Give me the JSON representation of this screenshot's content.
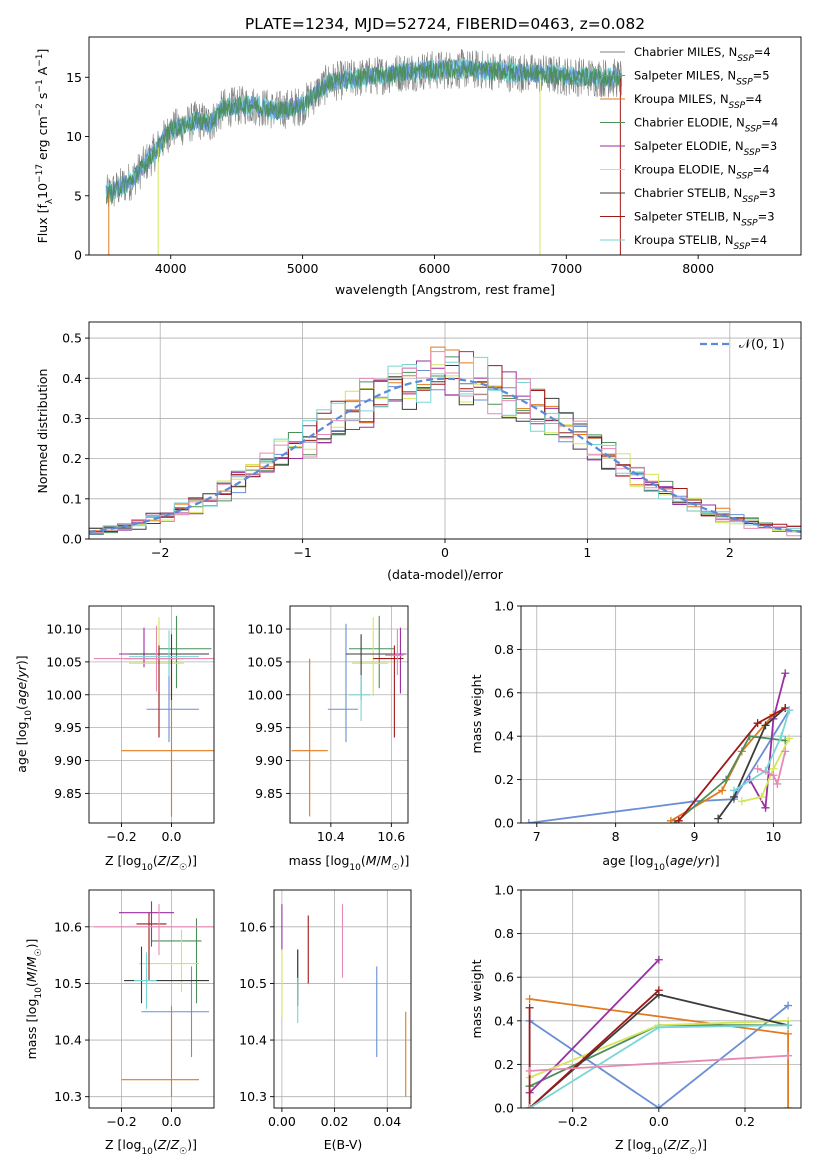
{
  "title": "PLATE=1234, MJD=52724, FIBERID=0463, z=0.082",
  "colors": {
    "Chabrier MILES": "#808080",
    "Salpeter MILES": "#6a8fd6",
    "Kroupa MILES": "#e07b1f",
    "Chabrier ELODIE": "#4d8f5a",
    "Salpeter ELODIE": "#9a2fa3",
    "Kroupa ELODIE": "#d4e65a",
    "Chabrier STELIB": "#3c3c3c",
    "Salpeter STELIB": "#a01818",
    "Kroupa STELIB": "#78d6d6",
    "extra": "#e68ab4"
  },
  "chart_data": [
    {
      "type": "line",
      "name": "spectrum",
      "xlabel": "wavelength [Angstrom, rest frame]",
      "ylabel": "Flux [f_λ 10^-17 erg cm^-2 s^-1 A^-1]",
      "xlim": [
        3380,
        8780
      ],
      "ylim": [
        0,
        18.4
      ],
      "xticks": [
        4000,
        5000,
        6000,
        7000,
        8000
      ],
      "yticks": [
        0,
        5,
        10,
        15
      ],
      "grid": false,
      "legend_position": "right",
      "legend": [
        {
          "label": "Chabrier MILES, N",
          "sub": "SSP",
          "suffix": "=4"
        },
        {
          "label": "Salpeter MILES, N",
          "sub": "SSP",
          "suffix": "=5"
        },
        {
          "label": "Kroupa MILES, N",
          "sub": "SSP",
          "suffix": "=4"
        },
        {
          "label": "Chabrier ELODIE, N",
          "sub": "SSP",
          "suffix": "=4"
        },
        {
          "label": "Salpeter ELODIE, N",
          "sub": "SSP",
          "suffix": "=3"
        },
        {
          "label": "Kroupa ELODIE, N",
          "sub": "SSP",
          "suffix": "=4"
        },
        {
          "label": "Chabrier STELIB, N",
          "sub": "SSP",
          "suffix": "=3"
        },
        {
          "label": "Salpeter STELIB, N",
          "sub": "SSP",
          "suffix": "=3"
        },
        {
          "label": "Kroupa STELIB, N",
          "sub": "SSP",
          "suffix": "=4"
        }
      ],
      "continuum": {
        "x": [
          3500,
          3600,
          3700,
          3800,
          3900,
          4000,
          4100,
          4200,
          4300,
          4400,
          4600,
          4800,
          5000,
          5200,
          5400,
          5600,
          5800,
          6000,
          6200,
          6400,
          6600,
          6800,
          7000,
          7200,
          7420
        ],
        "y": [
          5.0,
          5.6,
          6.3,
          7.6,
          9.0,
          10.6,
          10.9,
          11.4,
          11.1,
          12.4,
          12.7,
          12.2,
          12.6,
          14.6,
          14.9,
          15.2,
          15.5,
          15.6,
          15.7,
          15.6,
          15.4,
          15.3,
          15.1,
          15.0,
          14.9
        ]
      },
      "drops": [
        {
          "x": 3530,
          "series": "Kroupa MILES"
        },
        {
          "x": 3905,
          "series": "Kroupa ELODIE"
        },
        {
          "x": 6800,
          "series": "Kroupa ELODIE"
        },
        {
          "x": 7410,
          "series": "Salpeter STELIB"
        }
      ]
    },
    {
      "type": "bar",
      "name": "residual histogram",
      "xlabel": "(data-model)/error",
      "ylabel": "Normed distribution",
      "xlim": [
        -2.5,
        2.5
      ],
      "ylim": [
        0,
        0.54
      ],
      "xticks": [
        -2,
        -1,
        0,
        1,
        2
      ],
      "yticks": [
        0.0,
        0.1,
        0.2,
        0.3,
        0.4,
        0.5
      ],
      "grid": true,
      "legend": [
        {
          "label": "𝒩(0, 1)",
          "style": "dashed",
          "color": "#5b8ad8"
        }
      ],
      "legend_position": "top-right",
      "bin_width": 0.1,
      "bin_start": -2.5,
      "base_curve": "standard normal density"
    },
    {
      "type": "scatter",
      "name": "age vs Z",
      "xlabel": "Z [log10(Z/Z☉)]",
      "ylabel": "age  [log10(age/yr)]",
      "xlim": [
        -0.33,
        0.17
      ],
      "ylim": [
        9.805,
        10.135
      ],
      "xticks": [
        -0.2,
        0.0
      ],
      "yticks": [
        9.85,
        9.9,
        9.95,
        10.0,
        10.05,
        10.1
      ],
      "grid": true,
      "points": [
        {
          "series": "Salpeter MILES",
          "x": -0.01,
          "xerr": [
            0.09,
            0.12
          ],
          "y": 9.978,
          "yerr": [
            0.05,
            0.08
          ]
        },
        {
          "series": "Kroupa MILES",
          "x": 0.0,
          "xerr": [
            0.2,
            0.23
          ],
          "y": 9.915,
          "yerr": [
            0.1,
            0.14
          ]
        },
        {
          "series": "Chabrier ELODIE",
          "x": 0.02,
          "xerr": [
            0.07,
            0.14
          ],
          "y": 10.07,
          "yerr": [
            0.06,
            0.05
          ]
        },
        {
          "series": "Salpeter ELODIE",
          "x": -0.11,
          "xerr": [
            0.1,
            0.13
          ],
          "y": 10.062,
          "yerr": [
            0.02,
            0.04
          ]
        },
        {
          "series": "Kroupa ELODIE",
          "x": -0.05,
          "xerr": [
            0.12,
            0.1
          ],
          "y": 10.048,
          "yerr": [
            0.05,
            0.07
          ]
        },
        {
          "series": "Chabrier STELIB",
          "x": 0.0,
          "xerr": [
            0.17,
            0.15
          ],
          "y": 10.062,
          "yerr": [
            0.07,
            0.03
          ]
        },
        {
          "series": "Salpeter STELIB",
          "x": -0.05,
          "xerr": [
            0.14,
            0.1
          ],
          "y": 10.055,
          "yerr": [
            0.12,
            0.02
          ]
        },
        {
          "series": "Kroupa STELIB",
          "x": -0.01,
          "xerr": [
            0.16,
            0.12
          ],
          "y": 10.058,
          "yerr": [
            0.03,
            0.04
          ]
        },
        {
          "series": "extra",
          "x": -0.06,
          "xerr": [
            0.25,
            0.24
          ],
          "y": 10.055,
          "yerr": [
            0.05,
            0.05
          ]
        }
      ]
    },
    {
      "type": "scatter",
      "name": "age vs mass",
      "xlabel": "mass [log10(M/M☉)]",
      "ylabel": "",
      "xlim": [
        10.265,
        10.655
      ],
      "ylim": [
        9.805,
        10.135
      ],
      "xticks": [
        10.4,
        10.6
      ],
      "yticks": [
        9.85,
        9.9,
        9.95,
        10.0,
        10.05,
        10.1
      ],
      "grid": true,
      "points": [
        {
          "series": "Salpeter MILES",
          "x": 10.45,
          "xerr": [
            0.06,
            0.04
          ],
          "y": 9.978,
          "yerr": [
            0.05,
            0.13
          ]
        },
        {
          "series": "Kroupa MILES",
          "x": 10.33,
          "xerr": [
            0.06,
            0.06
          ],
          "y": 9.915,
          "yerr": [
            0.1,
            0.14
          ]
        },
        {
          "series": "Chabrier ELODIE",
          "x": 10.56,
          "xerr": [
            0.1,
            0.05
          ],
          "y": 10.07,
          "yerr": [
            0.06,
            0.05
          ]
        },
        {
          "series": "Salpeter ELODIE",
          "x": 10.63,
          "xerr": [
            0.07,
            0.02
          ],
          "y": 10.062,
          "yerr": [
            0.06,
            0.04
          ]
        },
        {
          "series": "Kroupa ELODIE",
          "x": 10.54,
          "xerr": [
            0.07,
            0.05
          ],
          "y": 10.048,
          "yerr": [
            0.05,
            0.07
          ]
        },
        {
          "series": "Chabrier STELIB",
          "x": 10.5,
          "xerr": [
            0.05,
            0.1
          ],
          "y": 10.062,
          "yerr": [
            0.07,
            0.03
          ]
        },
        {
          "series": "Salpeter STELIB",
          "x": 10.61,
          "xerr": [
            0.07,
            0.03
          ],
          "y": 10.055,
          "yerr": [
            0.12,
            0.02
          ]
        },
        {
          "series": "Kroupa STELIB",
          "x": 10.5,
          "xerr": [
            0.04,
            0.03
          ],
          "y": 10.0,
          "yerr": [
            0.04,
            0.03
          ]
        },
        {
          "series": "extra",
          "x": 10.62,
          "xerr": [
            0.04,
            0.02
          ],
          "y": 10.06,
          "yerr": [
            0.03,
            0.04
          ]
        }
      ]
    },
    {
      "type": "line",
      "name": "mass weight vs age",
      "xlabel": "age  [log10(age/yr)]",
      "ylabel": "mass weight",
      "xlim": [
        6.8,
        10.35
      ],
      "ylim": [
        0,
        1.0
      ],
      "xticks": [
        7,
        8,
        9,
        10
      ],
      "yticks": [
        0.0,
        0.2,
        0.4,
        0.6,
        0.8,
        1.0
      ],
      "grid": true,
      "series": [
        {
          "name": "Salpeter MILES",
          "x": [
            6.9,
            9.0,
            9.5,
            10.2
          ],
          "y": [
            0.0,
            0.1,
            0.11,
            0.52
          ]
        },
        {
          "name": "Kroupa MILES",
          "x": [
            8.7,
            9.35,
            9.6,
            10.0
          ],
          "y": [
            0.01,
            0.15,
            0.33,
            0.5
          ]
        },
        {
          "name": "Chabrier ELODIE",
          "x": [
            8.75,
            9.4,
            9.7,
            10.15
          ],
          "y": [
            0.0,
            0.2,
            0.4,
            0.38
          ]
        },
        {
          "name": "Salpeter ELODIE",
          "x": [
            9.7,
            9.9,
            10.0,
            10.15
          ],
          "y": [
            0.2,
            0.07,
            0.48,
            0.69
          ]
        },
        {
          "name": "Kroupa ELODIE",
          "x": [
            9.6,
            9.85,
            10.0,
            10.2
          ],
          "y": [
            0.1,
            0.12,
            0.25,
            0.39
          ]
        },
        {
          "name": "Chabrier STELIB",
          "x": [
            9.3,
            9.5,
            9.9,
            10.15
          ],
          "y": [
            0.02,
            0.12,
            0.45,
            0.53
          ]
        },
        {
          "name": "Salpeter STELIB",
          "x": [
            8.8,
            9.8,
            10.15
          ],
          "y": [
            0.01,
            0.46,
            0.53
          ]
        },
        {
          "name": "Kroupa STELIB",
          "x": [
            9.5,
            9.9,
            10.1,
            10.2
          ],
          "y": [
            0.15,
            0.24,
            0.4,
            0.52
          ]
        },
        {
          "name": "extra",
          "x": [
            9.8,
            10.0,
            10.05,
            10.15
          ],
          "y": [
            0.25,
            0.22,
            0.18,
            0.33
          ]
        }
      ]
    },
    {
      "type": "scatter",
      "name": "mass vs Z",
      "xlabel": "Z [log10(Z/Z☉)]",
      "ylabel": "mass [log10(M/M☉)]",
      "xlim": [
        -0.33,
        0.17
      ],
      "ylim": [
        10.28,
        10.665
      ],
      "xticks": [
        -0.2,
        0.0
      ],
      "yticks": [
        10.3,
        10.4,
        10.5,
        10.6
      ],
      "grid": true,
      "points": [
        {
          "series": "Salpeter MILES",
          "x": 0.08,
          "xerr": [
            0.2,
            0.07
          ],
          "y": 10.45,
          "yerr": [
            0.08,
            0.08
          ]
        },
        {
          "series": "Kroupa MILES",
          "x": 0.0,
          "xerr": [
            0.2,
            0.11
          ],
          "y": 10.33,
          "yerr": [
            0.03,
            0.13
          ]
        },
        {
          "series": "Chabrier ELODIE",
          "x": 0.1,
          "xerr": [
            0.18,
            0.02
          ],
          "y": 10.575,
          "yerr": [
            0.11,
            0.04
          ]
        },
        {
          "series": "Salpeter ELODIE",
          "x": -0.08,
          "xerr": [
            0.13,
            0.09
          ],
          "y": 10.625,
          "yerr": [
            0.06,
            0.02
          ]
        },
        {
          "series": "Kroupa ELODIE",
          "x": 0.04,
          "xerr": [
            0.17,
            0.07
          ],
          "y": 10.535,
          "yerr": [
            0.05,
            0.06
          ]
        },
        {
          "series": "Chabrier STELIB",
          "x": -0.12,
          "xerr": [
            0.07,
            0.27
          ],
          "y": 10.505,
          "yerr": [
            0.04,
            0.06
          ]
        },
        {
          "series": "Salpeter STELIB",
          "x": -0.09,
          "xerr": [
            0.05,
            0.07
          ],
          "y": 10.605,
          "yerr": [
            0.1,
            0.02
          ]
        },
        {
          "series": "Kroupa STELIB",
          "x": -0.1,
          "xerr": [
            0.05,
            0.04
          ],
          "y": 10.505,
          "yerr": [
            0.05,
            0.05
          ]
        },
        {
          "series": "extra",
          "x": -0.05,
          "xerr": [
            0.26,
            0.22
          ],
          "y": 10.6,
          "yerr": [
            0.05,
            0.04
          ]
        }
      ]
    },
    {
      "type": "scatter",
      "name": "mass vs E(B-V)",
      "xlabel": "E(B-V)",
      "ylabel": "",
      "xlim": [
        -0.003,
        0.049
      ],
      "ylim": [
        10.28,
        10.665
      ],
      "xticks": [
        0.0,
        0.02,
        0.04
      ],
      "yticks": [
        10.3,
        10.4,
        10.5,
        10.6
      ],
      "grid": true,
      "points": [
        {
          "series": "Salpeter MILES",
          "x": 0.036,
          "y": 10.45,
          "yerr": [
            0.08,
            0.08
          ]
        },
        {
          "series": "Kroupa MILES",
          "x": 0.047,
          "y": 10.37,
          "yerr": [
            0.07,
            0.08
          ]
        },
        {
          "series": "Chabrier ELODIE",
          "x": 0.006,
          "y": 10.52,
          "yerr": [
            0.05,
            0.04
          ]
        },
        {
          "series": "Salpeter ELODIE",
          "x": 0.0,
          "y": 10.6,
          "yerr": [
            0.04,
            0.04
          ]
        },
        {
          "series": "Kroupa ELODIE",
          "x": 0.0,
          "y": 10.5,
          "yerr": [
            0.06,
            0.06
          ]
        },
        {
          "series": "Chabrier STELIB",
          "x": 0.006,
          "y": 10.52,
          "yerr": [
            0.06,
            0.04
          ]
        },
        {
          "series": "Salpeter STELIB",
          "x": 0.01,
          "y": 10.56,
          "yerr": [
            0.06,
            0.06
          ]
        },
        {
          "series": "Kroupa STELIB",
          "x": 0.006,
          "y": 10.47,
          "yerr": [
            0.04,
            0.04
          ]
        },
        {
          "series": "extra",
          "x": 0.023,
          "y": 10.575,
          "yerr": [
            0.065,
            0.065
          ]
        }
      ]
    },
    {
      "type": "line",
      "name": "mass weight vs Z",
      "xlabel": "Z [log10(Z/Z☉)]",
      "ylabel": "mass weight",
      "xlim": [
        -0.32,
        0.33
      ],
      "ylim": [
        0,
        1.0
      ],
      "xticks": [
        -0.2,
        0.0,
        0.2
      ],
      "yticks": [
        0.0,
        0.2,
        0.4,
        0.6,
        0.8,
        1.0
      ],
      "grid": true,
      "series": [
        {
          "name": "Salpeter MILES",
          "x": [
            -0.3,
            0.0,
            0.3
          ],
          "y": [
            0.4,
            0.0,
            0.47
          ]
        },
        {
          "name": "Kroupa MILES",
          "x": [
            -0.3,
            0.3,
            0.3
          ],
          "y": [
            0.5,
            0.34,
            0.0
          ]
        },
        {
          "name": "Chabrier ELODIE",
          "x": [
            -0.3,
            0.0,
            0.3
          ],
          "y": [
            0.1,
            0.38,
            0.38
          ]
        },
        {
          "name": "Salpeter ELODIE",
          "x": [
            -0.3,
            0.0
          ],
          "y": [
            0.07,
            0.68
          ]
        },
        {
          "name": "Kroupa ELODIE",
          "x": [
            -0.3,
            0.0,
            0.3
          ],
          "y": [
            0.14,
            0.38,
            0.4
          ]
        },
        {
          "name": "Chabrier STELIB",
          "x": [
            -0.3,
            0.0,
            0.3
          ],
          "y": [
            0.0,
            0.52,
            0.38
          ]
        },
        {
          "name": "Salpeter STELIB",
          "x": [
            -0.3,
            -0.3,
            0.0
          ],
          "y": [
            0.46,
            0.0,
            0.54
          ]
        },
        {
          "name": "Kroupa STELIB",
          "x": [
            -0.3,
            0.0,
            0.3
          ],
          "y": [
            0.0,
            0.37,
            0.38
          ]
        },
        {
          "name": "extra",
          "x": [
            -0.3,
            0.3
          ],
          "y": [
            0.17,
            0.24
          ]
        }
      ]
    }
  ]
}
